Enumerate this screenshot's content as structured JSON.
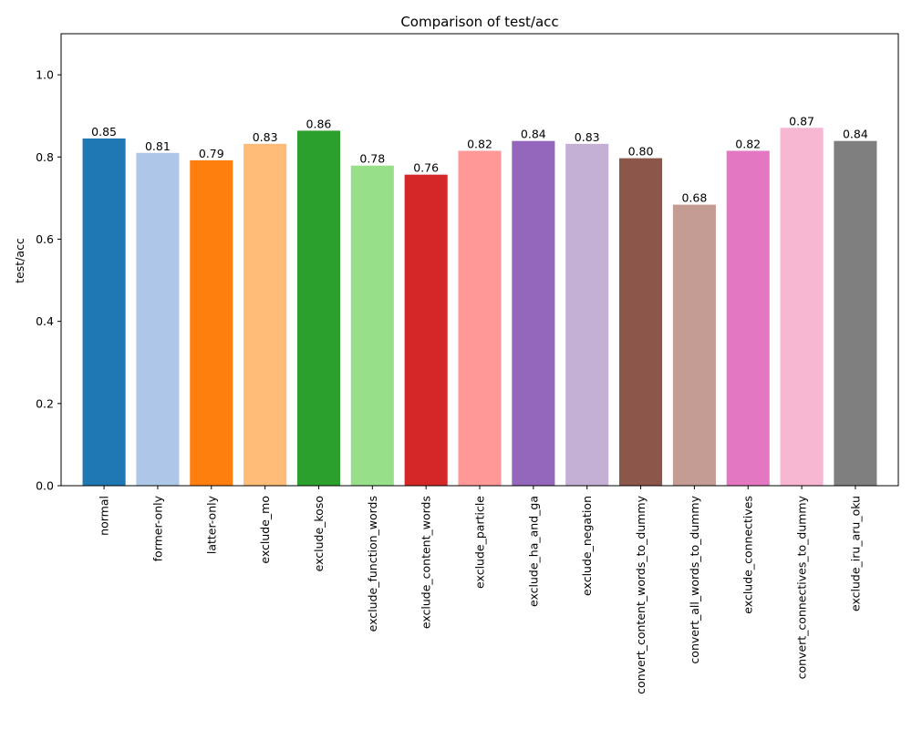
{
  "chart_data": {
    "type": "bar",
    "title": "Comparison of test/acc",
    "xlabel": "",
    "ylabel": "test/acc",
    "ylim": [
      0,
      1.1
    ],
    "yticks": [
      0.0,
      0.2,
      0.4,
      0.6,
      0.8,
      1.0
    ],
    "ytick_labels": [
      "0.0",
      "0.2",
      "0.4",
      "0.6",
      "0.8",
      "1.0"
    ],
    "grid": false,
    "categories": [
      "normal",
      "former-only",
      "latter-only",
      "exclude_mo",
      "exclude_koso",
      "exclude_function_words",
      "exclude_content_words",
      "exclude_particle",
      "exclude_ha_and_ga",
      "exclude_negation",
      "convert_content_words_to_dummy",
      "convert_all_words_to_dummy",
      "exclude_connectives",
      "convert_connectives_to_dummy",
      "exclude_iru_aru_oku"
    ],
    "values": [
      0.845,
      0.81,
      0.792,
      0.832,
      0.864,
      0.779,
      0.757,
      0.815,
      0.839,
      0.832,
      0.797,
      0.684,
      0.815,
      0.871,
      0.839
    ],
    "value_labels": [
      "0.85",
      "0.81",
      "0.79",
      "0.83",
      "0.86",
      "0.78",
      "0.76",
      "0.82",
      "0.84",
      "0.83",
      "0.80",
      "0.68",
      "0.82",
      "0.87",
      "0.84"
    ],
    "colors": [
      "#1f77b4",
      "#aec7e8",
      "#ff7f0e",
      "#ffbb78",
      "#2ca02c",
      "#98df8a",
      "#d62728",
      "#ff9896",
      "#9467bd",
      "#c5b0d5",
      "#8c564b",
      "#c49c94",
      "#e377c2",
      "#f7b6d2",
      "#7f7f7f"
    ]
  }
}
